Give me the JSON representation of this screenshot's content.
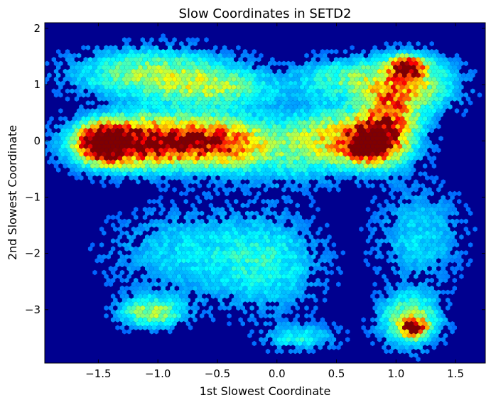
{
  "chart_data": {
    "type": "heatmap",
    "subtype": "hexbin",
    "title": "Slow Coordinates in SETD2",
    "xlabel": "1st Slowest Coordinate",
    "ylabel": "2nd Slowest Coordinate",
    "xlim": [
      -1.95,
      1.75
    ],
    "ylim": [
      -3.95,
      2.1
    ],
    "x_ticks": [
      -1.5,
      -1.0,
      -0.5,
      0.0,
      0.5,
      1.0,
      1.5
    ],
    "x_tick_labels": [
      "−1.5",
      "−1.0",
      "−0.5",
      "0.0",
      "0.5",
      "1.0",
      "1.5"
    ],
    "y_ticks": [
      2,
      1,
      0,
      -1,
      -2,
      -3
    ],
    "y_tick_labels": [
      "2",
      "1",
      "0",
      "−1",
      "−2",
      "−3"
    ],
    "colormap": "jet",
    "background_color": "#00008f",
    "grid": false,
    "density_regions": [
      {
        "x": -1.47,
        "y": -0.05,
        "sx": 0.12,
        "sy": 0.2,
        "peak": 1.0
      },
      {
        "x": -1.25,
        "y": -0.05,
        "sx": 0.3,
        "sy": 0.3,
        "peak": 0.55
      },
      {
        "x": -0.95,
        "y": 0.0,
        "sx": 0.4,
        "sy": 0.28,
        "peak": 0.6
      },
      {
        "x": -0.5,
        "y": -0.05,
        "sx": 0.25,
        "sy": 0.28,
        "peak": 0.5
      },
      {
        "x": -1.05,
        "y": 1.2,
        "sx": 0.45,
        "sy": 0.3,
        "peak": 0.38
      },
      {
        "x": -0.5,
        "y": 0.9,
        "sx": 0.35,
        "sy": 0.25,
        "peak": 0.3
      },
      {
        "x": 0.05,
        "y": -0.15,
        "sx": 0.35,
        "sy": 0.4,
        "peak": 0.25
      },
      {
        "x": 0.78,
        "y": -0.05,
        "sx": 0.13,
        "sy": 0.2,
        "peak": 1.0
      },
      {
        "x": 0.62,
        "y": 0.05,
        "sx": 0.3,
        "sy": 0.35,
        "peak": 0.5
      },
      {
        "x": 0.95,
        "y": 0.4,
        "sx": 0.15,
        "sy": 0.45,
        "peak": 0.55
      },
      {
        "x": 1.1,
        "y": 1.3,
        "sx": 0.09,
        "sy": 0.12,
        "peak": 0.95
      },
      {
        "x": 1.15,
        "y": 1.0,
        "sx": 0.25,
        "sy": 0.35,
        "peak": 0.4
      },
      {
        "x": 0.6,
        "y": 1.1,
        "sx": 0.3,
        "sy": 0.25,
        "peak": 0.3
      },
      {
        "x": 1.15,
        "y": -3.32,
        "sx": 0.07,
        "sy": 0.1,
        "peak": 0.72
      },
      {
        "x": 1.12,
        "y": -3.2,
        "sx": 0.17,
        "sy": 0.3,
        "peak": 0.45
      },
      {
        "x": -1.05,
        "y": -3.05,
        "sx": 0.18,
        "sy": 0.18,
        "peak": 0.4
      },
      {
        "x": -0.75,
        "y": -2.0,
        "sx": 0.45,
        "sy": 0.55,
        "peak": 0.18
      },
      {
        "x": -0.05,
        "y": -2.2,
        "sx": 0.3,
        "sy": 0.6,
        "peak": 0.2
      },
      {
        "x": 0.2,
        "y": -3.5,
        "sx": 0.2,
        "sy": 0.15,
        "peak": 0.22
      },
      {
        "x": 1.2,
        "y": -1.7,
        "sx": 0.25,
        "sy": 0.6,
        "peak": 0.18
      }
    ]
  }
}
